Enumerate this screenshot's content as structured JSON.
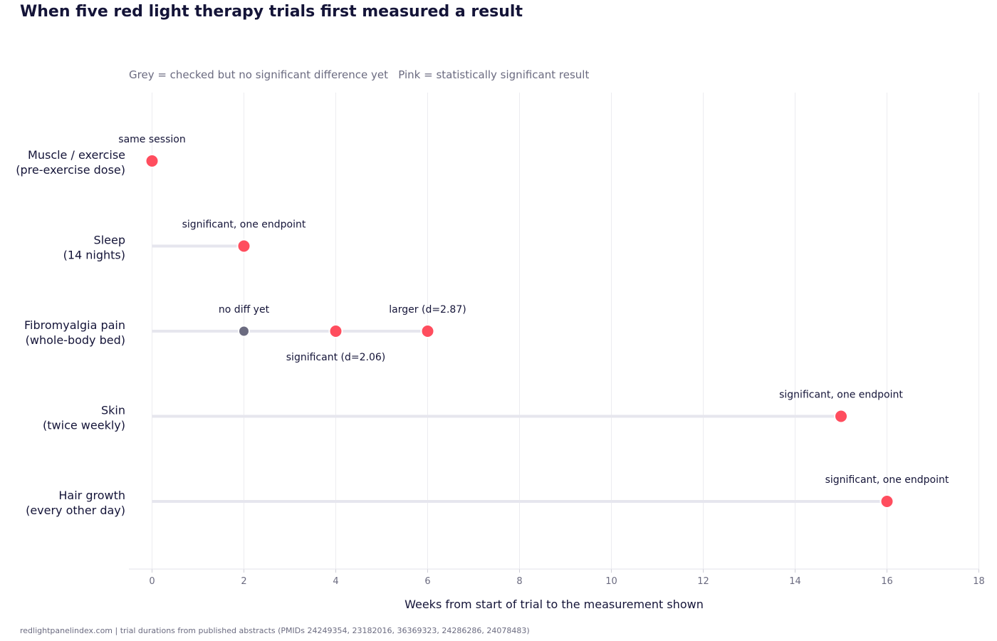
{
  "chart_data": {
    "type": "scatter",
    "title": "When five red light therapy trials first measured a result",
    "subtitle": "Grey = checked but no significant difference yet   Pink = statistically significant result",
    "xlabel": "Weeks from start of trial to the measurement shown",
    "ylabel": "",
    "xlim": [
      -0.5,
      18
    ],
    "xticks": [
      0,
      2,
      4,
      6,
      8,
      10,
      12,
      14,
      16,
      18
    ],
    "grid": "vertical",
    "colors": {
      "significant": "#ff4d5e",
      "not_significant": "#6b6b80",
      "track": "#e6e6ee",
      "text": "#141438",
      "muted": "#6b6b80",
      "grid": "#ececf0"
    },
    "categories": [
      {
        "line1": "Muscle / exercise",
        "line2": "(pre-exercise dose)",
        "end": 0
      },
      {
        "line1": "Sleep",
        "line2": "(14 nights)",
        "end": 2
      },
      {
        "line1": "Fibromyalgia pain",
        "line2": "(whole-body bed)",
        "end": 6
      },
      {
        "line1": "Skin",
        "line2": "(twice weekly)",
        "end": 15
      },
      {
        "line1": "Hair growth",
        "line2": "(every other day)",
        "end": 16
      }
    ],
    "points": [
      {
        "category": 0,
        "x": 0,
        "status": "significant",
        "label": "same session",
        "label_pos": "above"
      },
      {
        "category": 1,
        "x": 2,
        "status": "significant",
        "label": "significant, one endpoint",
        "label_pos": "above"
      },
      {
        "category": 2,
        "x": 2,
        "status": "not_significant",
        "label": "no diff yet",
        "label_pos": "above"
      },
      {
        "category": 2,
        "x": 4,
        "status": "significant",
        "label": "significant (d=2.06)",
        "label_pos": "below"
      },
      {
        "category": 2,
        "x": 6,
        "status": "significant",
        "label": "larger (d=2.87)",
        "label_pos": "above"
      },
      {
        "category": 3,
        "x": 15,
        "status": "significant",
        "label": "significant, one endpoint",
        "label_pos": "above"
      },
      {
        "category": 4,
        "x": 16,
        "status": "significant",
        "label": "significant, one endpoint",
        "label_pos": "above"
      }
    ]
  },
  "footer": {
    "source": "redlightpanelindex.com | trial durations from published abstracts (PMIDs 24249354, 23182016, 36369323, 24286286, 24078483)"
  }
}
